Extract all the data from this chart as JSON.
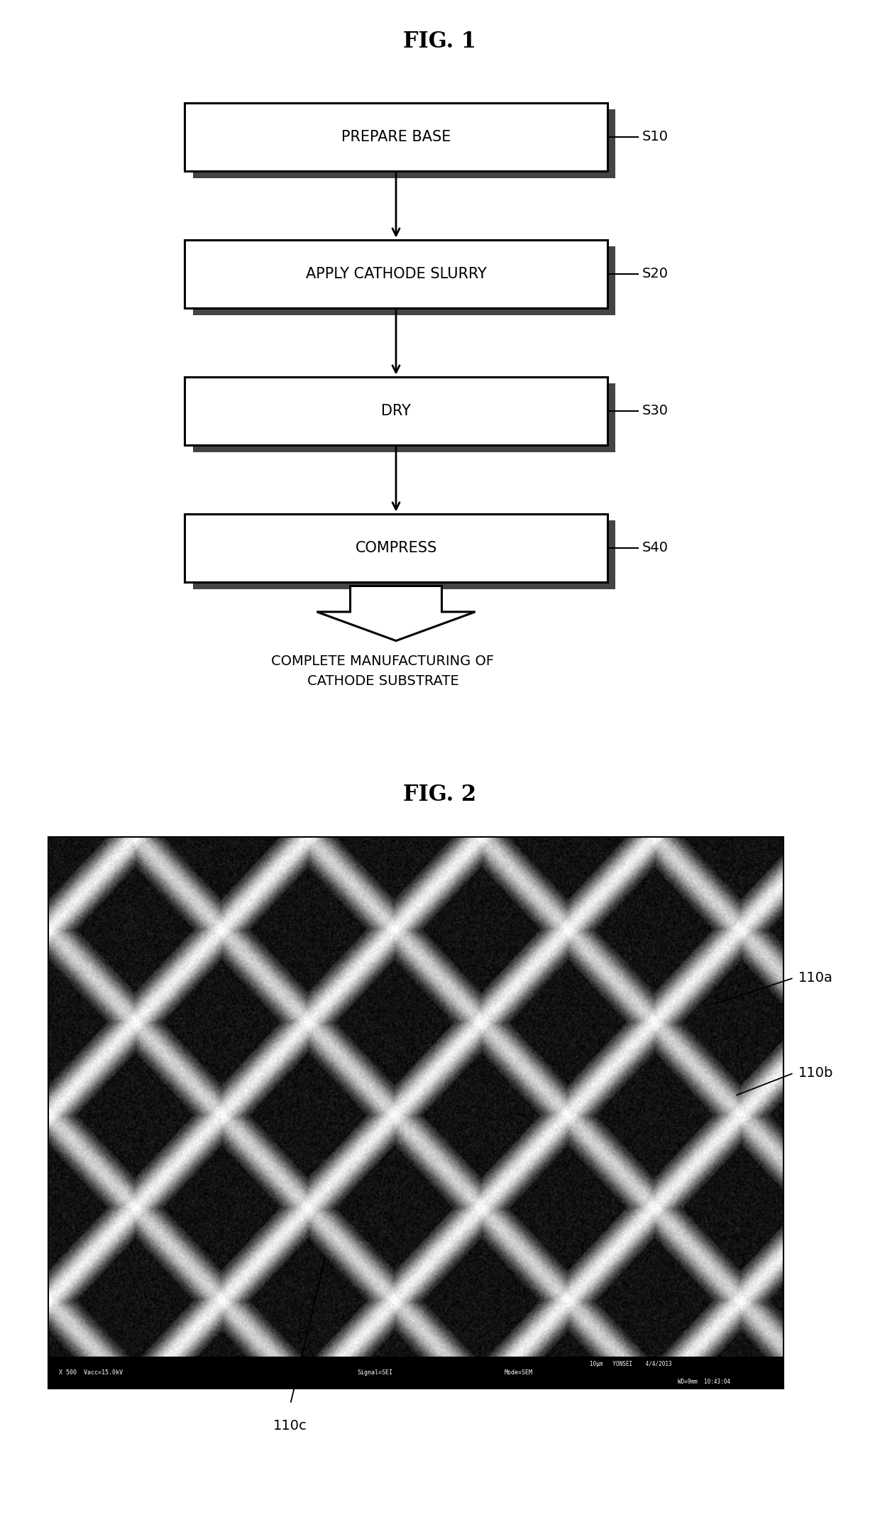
{
  "fig_title": "FIG. 1",
  "fig2_title": "FIG. 2",
  "background_color": "#ffffff",
  "steps": [
    {
      "label": "PREPARE BASE",
      "step_id": "S10"
    },
    {
      "label": "APPLY CATHODE SLURRY",
      "step_id": "S20"
    },
    {
      "label": "DRY",
      "step_id": "S30"
    },
    {
      "label": "COMPRESS",
      "step_id": "S40"
    }
  ],
  "final_label": "COMPLETE MANUFACTURING OF\nCATHODE SUBSTRATE",
  "label_110a": "110a",
  "label_110b": "110b",
  "label_110c": "110c",
  "box_edge_color": "#000000",
  "box_face_color": "#ffffff",
  "box_shadow_color": "#444444",
  "text_color": "#000000",
  "arrow_color": "#000000",
  "title_fontsize": 22,
  "step_fontsize": 15,
  "label_fontsize": 14,
  "final_fontsize": 14
}
